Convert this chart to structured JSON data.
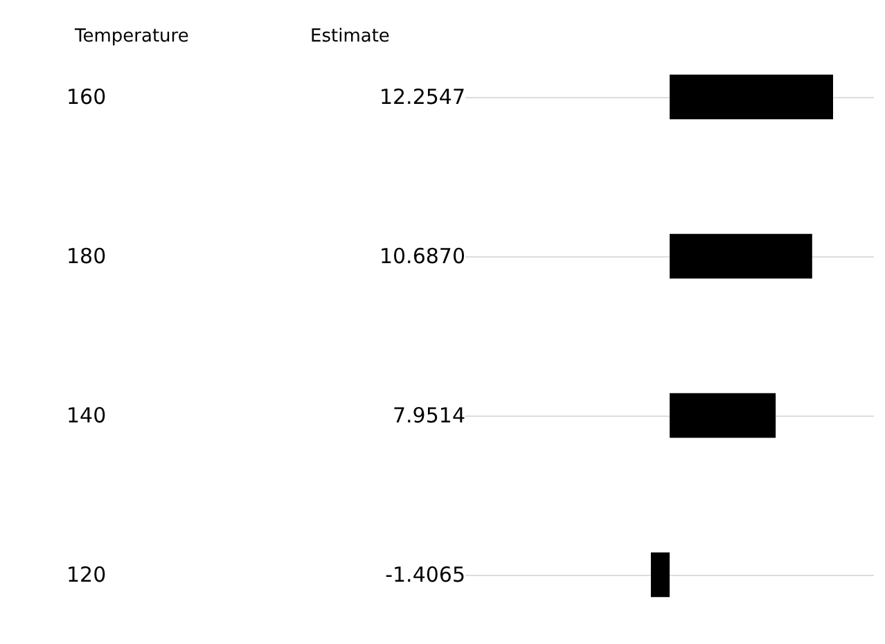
{
  "chart_data": {
    "type": "bar",
    "orientation": "horizontal",
    "ylabel": "Temperature",
    "xlabel": "Estimate",
    "categories": [
      "160",
      "180",
      "140",
      "120"
    ],
    "values": [
      12.2547,
      10.687,
      7.9514,
      -1.4065
    ],
    "value_labels": [
      "12.2547",
      "10.6870",
      "7.9514",
      "-1.4065"
    ],
    "color": "#000000",
    "tick_labels": "y",
    "grid": "y"
  }
}
